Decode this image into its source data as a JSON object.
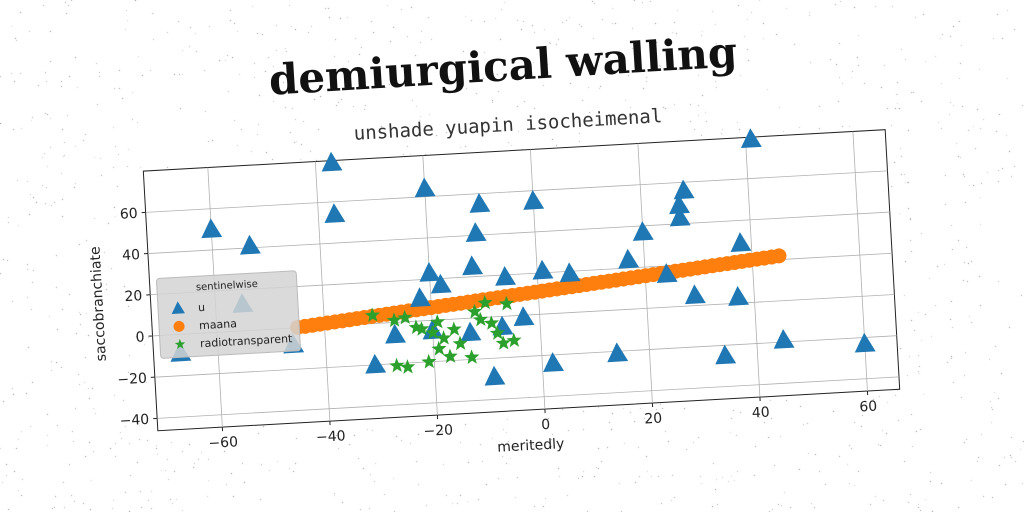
{
  "title": "demiurgical walling",
  "subtitle": "unshade yuapin isocheimenal",
  "chart_data": {
    "type": "scatter",
    "xlabel": "meritedly",
    "ylabel": "saccobranchiate",
    "xlim": [
      -72,
      66
    ],
    "ylim": [
      -46,
      80
    ],
    "xticks": [
      -60,
      -40,
      -20,
      0,
      20,
      40,
      60
    ],
    "yticks": [
      -40,
      -20,
      0,
      20,
      40,
      60
    ],
    "grid": true,
    "legend": {
      "title": "sentinelwise",
      "placement": "center-left"
    },
    "series": [
      {
        "name": "u",
        "marker": "triangle",
        "color": "#1f77b4",
        "points": [
          [
            -37,
            79
          ],
          [
            41,
            79
          ],
          [
            -60,
            50
          ],
          [
            -37,
            54
          ],
          [
            -10,
            55
          ],
          [
            -20,
            64
          ],
          [
            0,
            55
          ],
          [
            28,
            56
          ],
          [
            -53,
            41
          ],
          [
            -11,
            41
          ],
          [
            27,
            49
          ],
          [
            27,
            43
          ],
          [
            20,
            37
          ],
          [
            -20,
            23
          ],
          [
            -18,
            17
          ],
          [
            -12,
            25
          ],
          [
            -6,
            19
          ],
          [
            1,
            21
          ],
          [
            6,
            19
          ],
          [
            17,
            24
          ],
          [
            24,
            16
          ],
          [
            38,
            29
          ],
          [
            -55,
            13
          ],
          [
            -22,
            11
          ],
          [
            29,
            5
          ],
          [
            37,
            3
          ],
          [
            -46,
            -8
          ],
          [
            -67,
            -9
          ],
          [
            -27,
            -6
          ],
          [
            -20,
            -5
          ],
          [
            -13,
            -7
          ],
          [
            -7,
            -5
          ],
          [
            -3,
            -1
          ],
          [
            -31,
            -20
          ],
          [
            -9,
            -29
          ],
          [
            2,
            -24
          ],
          [
            14,
            -21
          ],
          [
            34,
            -25
          ],
          [
            45,
            -19
          ],
          [
            60,
            -23
          ]
        ]
      },
      {
        "name": "maana",
        "marker": "circle",
        "color": "#ff7f0e",
        "x_range": [
          -45,
          45
        ],
        "line": {
          "slope": 0.24,
          "intercept": 11
        },
        "point_count": 66
      },
      {
        "name": "radiotransparent",
        "marker": "star",
        "color": "#2ca02c",
        "points": [
          [
            -31,
            4
          ],
          [
            -27,
            1
          ],
          [
            -25,
            2
          ],
          [
            -22,
            -4
          ],
          [
            -20,
            -6
          ],
          [
            -18,
            -9
          ],
          [
            -15,
            -12
          ],
          [
            -19,
            -14
          ],
          [
            -17,
            -18
          ],
          [
            -21,
            -20
          ],
          [
            -25,
            -22
          ],
          [
            -27,
            -21
          ],
          [
            -13,
            -19
          ],
          [
            -11,
            -1
          ],
          [
            -10,
            7
          ],
          [
            -12,
            3
          ],
          [
            -6,
            6
          ],
          [
            -8,
            -8
          ],
          [
            -7,
            -13
          ],
          [
            -5,
            -12
          ],
          [
            -9,
            -3
          ],
          [
            -16,
            -5
          ],
          [
            -19,
            -1
          ],
          [
            -23,
            -3
          ]
        ]
      }
    ]
  }
}
